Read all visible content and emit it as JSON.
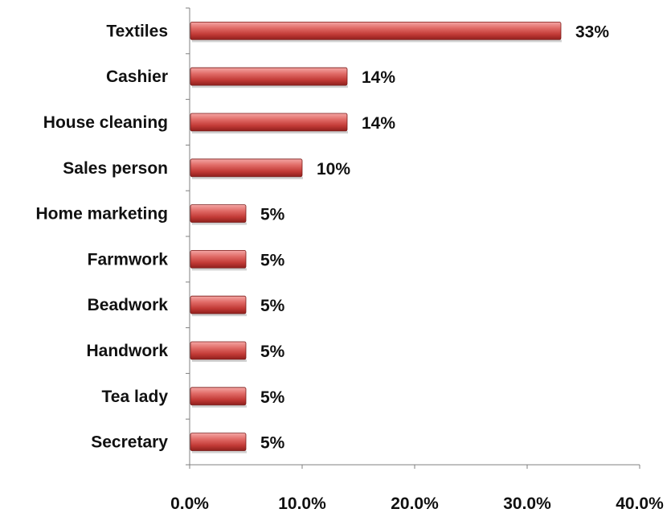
{
  "chart_data": {
    "type": "bar",
    "orientation": "horizontal",
    "categories": [
      "Textiles",
      "Cashier",
      "House cleaning",
      "Sales person",
      "Home marketing",
      "Farmwork",
      "Beadwork",
      "Handwork",
      "Tea lady",
      "Secretary"
    ],
    "values": [
      33,
      14,
      14,
      10,
      5,
      5,
      5,
      5,
      5,
      5
    ],
    "data_labels": [
      "33%",
      "14%",
      "14%",
      "10%",
      "5%",
      "5%",
      "5%",
      "5%",
      "5%",
      "5%"
    ],
    "x_ticks": [
      "0.0%",
      "10.0%",
      "20.0%",
      "30.0%",
      "40.0%"
    ],
    "xlim": [
      0,
      40
    ],
    "title": "",
    "xlabel": "",
    "ylabel": "",
    "grid": false,
    "legend": "none",
    "bar_color": "#d9534f"
  }
}
